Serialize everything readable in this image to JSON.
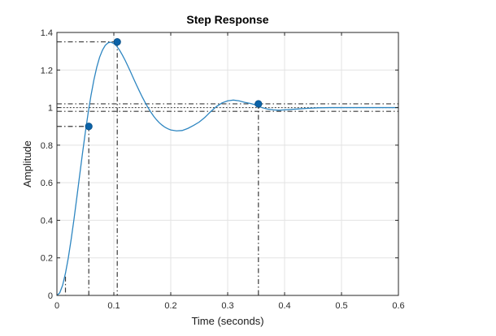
{
  "chart_data": {
    "type": "line",
    "title": "Step Response",
    "xlabel": "Time (seconds)",
    "ylabel": "Amplitude",
    "xlim": [
      0,
      0.6
    ],
    "ylim": [
      0,
      1.4
    ],
    "xticks": [
      0,
      0.1,
      0.2,
      0.3,
      0.4,
      0.5,
      0.6
    ],
    "yticks": [
      0,
      0.2,
      0.4,
      0.6,
      0.8,
      1,
      1.2,
      1.4
    ],
    "xtick_labels": [
      "0",
      "0.1",
      "0.2",
      "0.3",
      "0.4",
      "0.5",
      "0.6"
    ],
    "ytick_labels": [
      "0",
      "0.2",
      "0.4",
      "0.6",
      "0.8",
      "1",
      "1.2",
      "1.4"
    ],
    "grid": true,
    "colors": {
      "line": "#2e86c1",
      "marker": "#0b63a8",
      "marker_edge": "#0a4f86",
      "grid": "#e3e3e3",
      "axes": "#262626",
      "reference": "#3a3a3a"
    },
    "series": [
      {
        "x": [
          0,
          0.005,
          0.01,
          0.015,
          0.02,
          0.025,
          0.03,
          0.035,
          0.04,
          0.045,
          0.05,
          0.055,
          0.06,
          0.065,
          0.07,
          0.075,
          0.08,
          0.085,
          0.09,
          0.095,
          0.1,
          0.105,
          0.11,
          0.115,
          0.12,
          0.125,
          0.13,
          0.135,
          0.14,
          0.145,
          0.15,
          0.155,
          0.16,
          0.165,
          0.17,
          0.175,
          0.18,
          0.185,
          0.19,
          0.195,
          0.2,
          0.21,
          0.22,
          0.23,
          0.24,
          0.25,
          0.26,
          0.27,
          0.28,
          0.29,
          0.3,
          0.31,
          0.32,
          0.33,
          0.34,
          0.35,
          0.36,
          0.37,
          0.38,
          0.39,
          0.4,
          0.42,
          0.44,
          0.46,
          0.48,
          0.5,
          0.52,
          0.54,
          0.56,
          0.58,
          0.6
        ],
        "y": [
          0,
          0.014,
          0.054,
          0.118,
          0.2,
          0.298,
          0.406,
          0.522,
          0.641,
          0.758,
          0.87,
          0.974,
          1.067,
          1.148,
          1.215,
          1.268,
          1.306,
          1.332,
          1.345,
          1.348,
          1.341,
          1.327,
          1.306,
          1.28,
          1.251,
          1.219,
          1.186,
          1.152,
          1.119,
          1.087,
          1.056,
          1.027,
          1.0,
          0.976,
          0.954,
          0.935,
          0.919,
          0.906,
          0.895,
          0.887,
          0.881,
          0.876,
          0.878,
          0.889,
          0.905,
          0.923,
          0.948,
          0.978,
          1.005,
          1.025,
          1.036,
          1.04,
          1.036,
          1.028,
          1.022,
          1.014,
          1.0,
          0.992,
          0.988,
          0.986,
          0.988,
          0.992,
          0.996,
          0.999,
          1.0,
          1.0,
          1.0,
          1.0,
          1.0,
          1.0,
          1.0
        ]
      }
    ],
    "markers": [
      {
        "x": 0.056,
        "y": 0.9
      },
      {
        "x": 0.106,
        "y": 1.35
      },
      {
        "x": 0.354,
        "y": 1.02
      }
    ],
    "reference_lines": {
      "vertical": [
        0.015,
        0.056,
        0.106,
        0.354
      ],
      "horizontal": [
        0.98,
        1.02
      ],
      "dotted_horizontal": [
        1.0
      ]
    }
  }
}
